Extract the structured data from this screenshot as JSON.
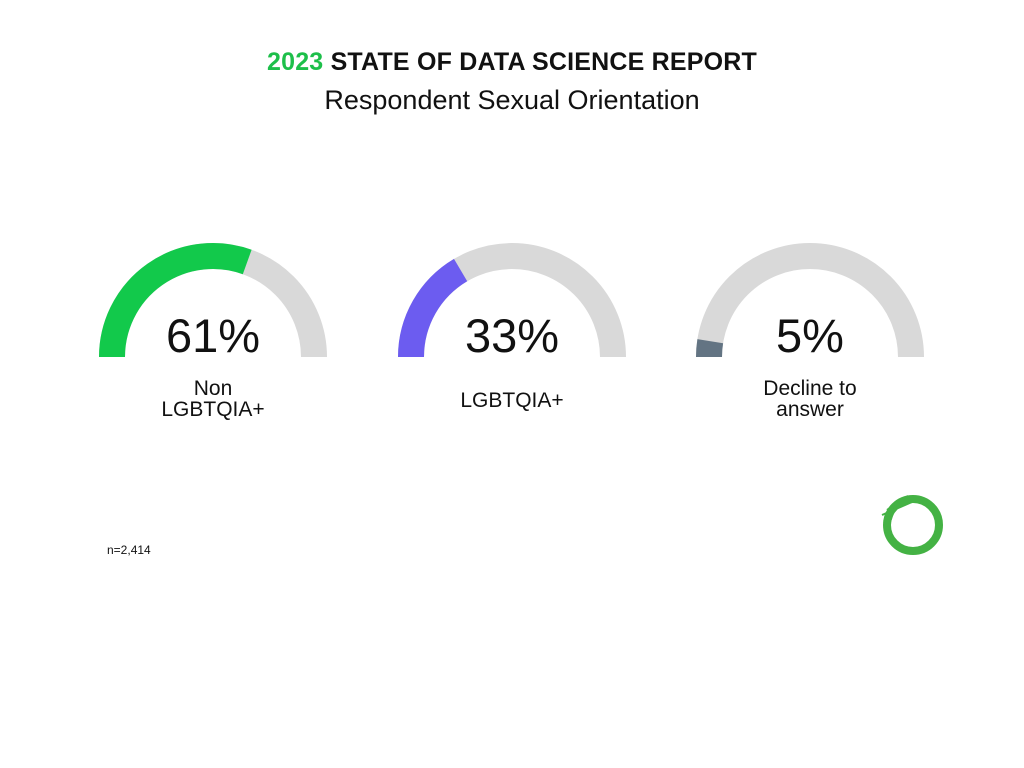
{
  "header": {
    "year": "2023",
    "report_name": "STATE OF DATA SCIENCE REPORT",
    "title": "Respondent Sexual Orientation"
  },
  "chart_data": {
    "type": "gauge",
    "series": [
      {
        "value": 61,
        "value_label": "61%",
        "label": "Non\nLGBTQIA+",
        "color": "#12c94b"
      },
      {
        "value": 33,
        "value_label": "33%",
        "label": "LGBTQIA+",
        "color": "#6c5cf0"
      },
      {
        "value": 5,
        "value_label": "5%",
        "label": "Decline to\nanswer",
        "color": "#637483"
      }
    ],
    "max": 100,
    "track_color": "#d9d9d9"
  },
  "footer": {
    "note": "n=2,414"
  },
  "logo": {
    "icon": "anaconda-logo-icon",
    "color": "#44b244"
  }
}
